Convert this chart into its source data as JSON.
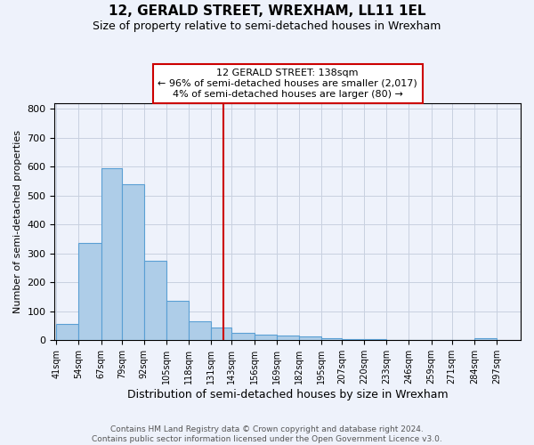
{
  "title": "12, GERALD STREET, WREXHAM, LL11 1EL",
  "subtitle": "Size of property relative to semi-detached houses in Wrexham",
  "xlabel": "Distribution of semi-detached houses by size in Wrexham",
  "ylabel": "Number of semi-detached properties",
  "bin_labels": [
    "41sqm",
    "54sqm",
    "67sqm",
    "79sqm",
    "92sqm",
    "105sqm",
    "118sqm",
    "131sqm",
    "143sqm",
    "156sqm",
    "169sqm",
    "182sqm",
    "195sqm",
    "207sqm",
    "220sqm",
    "233sqm",
    "246sqm",
    "259sqm",
    "271sqm",
    "284sqm",
    "297sqm"
  ],
  "bin_edges": [
    41,
    54,
    67,
    79,
    92,
    105,
    118,
    131,
    143,
    156,
    169,
    182,
    195,
    207,
    220,
    233,
    246,
    259,
    271,
    284,
    297
  ],
  "bar_heights": [
    57,
    335,
    595,
    540,
    275,
    135,
    65,
    45,
    27,
    20,
    15,
    13,
    8,
    5,
    5,
    2,
    2,
    0,
    0,
    8
  ],
  "bar_color": "#aecde8",
  "bar_edge_color": "#5a9fd4",
  "property_value": 138,
  "vline_color": "#cc0000",
  "annotation_line1": "12 GERALD STREET: 138sqm",
  "annotation_line2": "← 96% of semi-detached houses are smaller (2,017)",
  "annotation_line3": "4% of semi-detached houses are larger (80) →",
  "annotation_box_color": "#ffffff",
  "annotation_box_edge": "#cc0000",
  "ylim": [
    0,
    820
  ],
  "yticks": [
    0,
    100,
    200,
    300,
    400,
    500,
    600,
    700,
    800
  ],
  "background_color": "#eef2fb",
  "grid_color": "#c8d0e0",
  "footer_text": "Contains HM Land Registry data © Crown copyright and database right 2024.\nContains public sector information licensed under the Open Government Licence v3.0.",
  "title_fontsize": 11,
  "subtitle_fontsize": 9,
  "ylabel_fontsize": 8,
  "xlabel_fontsize": 9,
  "tick_fontsize": 7,
  "footer_fontsize": 6.5
}
